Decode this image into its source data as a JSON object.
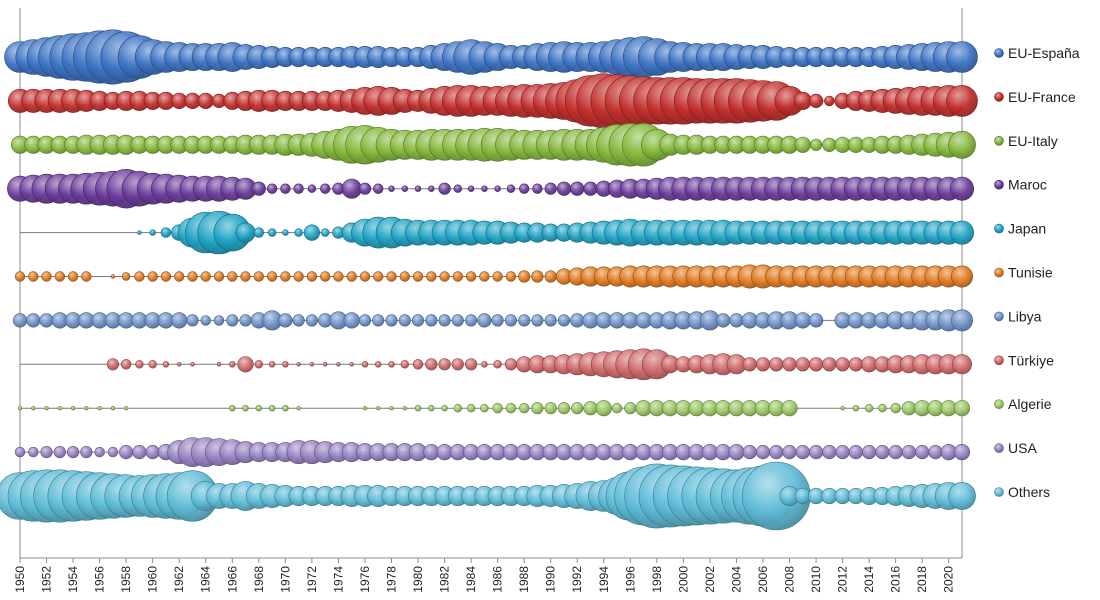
{
  "chart_data": {
    "type": "bubble",
    "title": "",
    "xlabel": "",
    "ylabel": "",
    "xlim": [
      1950,
      2021
    ],
    "x_ticks": [
      1950,
      1952,
      1954,
      1956,
      1958,
      1960,
      1962,
      1964,
      1966,
      1968,
      1970,
      1972,
      1974,
      1976,
      1978,
      1980,
      1982,
      1984,
      1986,
      1988,
      1990,
      1992,
      1994,
      1996,
      1998,
      2000,
      2002,
      2004,
      2006,
      2008,
      2010,
      2012,
      2014,
      2016,
      2018,
      2020
    ],
    "grid": false,
    "legend_position": "right",
    "value_note": "bubble size per country per year (relative, estimated from bubble diameters)",
    "years": [
      1950,
      1951,
      1952,
      1953,
      1954,
      1955,
      1956,
      1957,
      1958,
      1959,
      1960,
      1961,
      1962,
      1963,
      1964,
      1965,
      1966,
      1967,
      1968,
      1969,
      1970,
      1971,
      1972,
      1973,
      1974,
      1975,
      1976,
      1977,
      1978,
      1979,
      1980,
      1981,
      1982,
      1983,
      1984,
      1985,
      1986,
      1987,
      1988,
      1989,
      1990,
      1991,
      1992,
      1993,
      1994,
      1995,
      1996,
      1997,
      1998,
      1999,
      2000,
      2001,
      2002,
      2003,
      2004,
      2005,
      2006,
      2007,
      2008,
      2009,
      2010,
      2011,
      2012,
      2013,
      2014,
      2015,
      2016,
      2017,
      2018,
      2019,
      2020,
      2021
    ],
    "series": [
      {
        "name": "EU-España",
        "color": "#3e74c4",
        "values": [
          32,
          36,
          40,
          44,
          48,
          50,
          54,
          56,
          52,
          44,
          36,
          32,
          30,
          28,
          28,
          28,
          30,
          26,
          24,
          22,
          20,
          20,
          20,
          20,
          20,
          22,
          22,
          22,
          20,
          20,
          20,
          24,
          28,
          32,
          36,
          32,
          28,
          24,
          24,
          28,
          30,
          32,
          30,
          30,
          32,
          36,
          40,
          42,
          38,
          32,
          30,
          28,
          28,
          28,
          26,
          24,
          24,
          22,
          20,
          20,
          20,
          20,
          20,
          20,
          20,
          22,
          24,
          26,
          28,
          30,
          32,
          32
        ]
      },
      {
        "name": "EU-France",
        "color": "#c2302e",
        "values": [
          24,
          24,
          24,
          24,
          24,
          22,
          20,
          18,
          20,
          20,
          18,
          18,
          16,
          16,
          16,
          14,
          18,
          20,
          22,
          22,
          20,
          20,
          20,
          20,
          22,
          24,
          28,
          30,
          28,
          24,
          22,
          26,
          30,
          32,
          32,
          30,
          30,
          32,
          34,
          34,
          36,
          38,
          44,
          52,
          56,
          54,
          52,
          50,
          48,
          48,
          48,
          46,
          46,
          46,
          46,
          44,
          42,
          40,
          30,
          18,
          14,
          10,
          16,
          20,
          22,
          24,
          26,
          28,
          30,
          30,
          32,
          32
        ]
      },
      {
        "name": "EU-Italy",
        "color": "#85b83c",
        "values": [
          18,
          18,
          18,
          18,
          18,
          20,
          20,
          20,
          20,
          18,
          18,
          18,
          18,
          18,
          18,
          18,
          18,
          20,
          20,
          20,
          22,
          22,
          24,
          28,
          32,
          38,
          40,
          36,
          32,
          30,
          30,
          32,
          32,
          32,
          32,
          34,
          34,
          32,
          30,
          30,
          30,
          32,
          32,
          32,
          36,
          42,
          44,
          44,
          32,
          22,
          20,
          20,
          18,
          18,
          18,
          18,
          18,
          18,
          18,
          16,
          12,
          14,
          16,
          16,
          16,
          18,
          18,
          20,
          22,
          24,
          26,
          28
        ]
      },
      {
        "name": "Maroc",
        "color": "#6b3c9a",
        "values": [
          26,
          28,
          30,
          30,
          30,
          32,
          34,
          36,
          40,
          36,
          32,
          30,
          28,
          26,
          26,
          26,
          24,
          22,
          14,
          10,
          10,
          10,
          8,
          10,
          12,
          20,
          12,
          10,
          6,
          6,
          6,
          6,
          12,
          8,
          6,
          6,
          6,
          8,
          10,
          10,
          12,
          14,
          14,
          14,
          16,
          18,
          20,
          20,
          22,
          24,
          24,
          24,
          24,
          24,
          24,
          24,
          24,
          24,
          24,
          24,
          24,
          24,
          24,
          24,
          24,
          24,
          24,
          24,
          24,
          24,
          24,
          24
        ]
      },
      {
        "name": "Japan",
        "color": "#20a3c4",
        "values": [
          0,
          0,
          0,
          0,
          0,
          0,
          0,
          0,
          0,
          4,
          6,
          10,
          16,
          30,
          42,
          44,
          38,
          20,
          10,
          8,
          6,
          8,
          16,
          8,
          12,
          20,
          28,
          32,
          32,
          28,
          26,
          26,
          26,
          26,
          26,
          24,
          24,
          22,
          20,
          20,
          18,
          18,
          20,
          22,
          24,
          26,
          28,
          26,
          26,
          26,
          26,
          26,
          26,
          26,
          24,
          24,
          24,
          24,
          24,
          24,
          24,
          24,
          24,
          24,
          24,
          24,
          24,
          24,
          24,
          24,
          24,
          24
        ]
      },
      {
        "name": "Tunisie",
        "color": "#e07b20",
        "values": [
          10,
          10,
          10,
          10,
          10,
          10,
          0,
          4,
          8,
          10,
          10,
          10,
          10,
          10,
          10,
          10,
          10,
          10,
          10,
          10,
          10,
          10,
          10,
          10,
          10,
          10,
          10,
          10,
          10,
          10,
          10,
          10,
          10,
          10,
          10,
          10,
          10,
          10,
          12,
          12,
          12,
          16,
          18,
          20,
          20,
          20,
          22,
          22,
          22,
          22,
          22,
          22,
          22,
          22,
          22,
          24,
          24,
          22,
          22,
          22,
          22,
          22,
          22,
          22,
          22,
          22,
          22,
          22,
          22,
          22,
          22,
          22
        ]
      },
      {
        "name": "Libya",
        "color": "#6f92c8",
        "values": [
          14,
          14,
          14,
          16,
          16,
          16,
          16,
          16,
          16,
          16,
          16,
          16,
          16,
          12,
          10,
          10,
          12,
          12,
          16,
          20,
          14,
          12,
          12,
          14,
          18,
          16,
          12,
          12,
          12,
          12,
          12,
          12,
          12,
          12,
          12,
          14,
          12,
          12,
          12,
          12,
          12,
          12,
          14,
          16,
          16,
          16,
          16,
          16,
          16,
          18,
          18,
          18,
          20,
          14,
          14,
          16,
          16,
          18,
          18,
          16,
          14,
          0,
          16,
          16,
          16,
          16,
          18,
          18,
          20,
          20,
          22,
          22
        ]
      },
      {
        "name": "Türkiye",
        "color": "#d06a6a",
        "values": [
          0,
          0,
          0,
          0,
          0,
          0,
          0,
          12,
          10,
          8,
          8,
          6,
          4,
          4,
          0,
          4,
          6,
          16,
          8,
          6,
          6,
          4,
          4,
          4,
          4,
          4,
          6,
          6,
          6,
          8,
          10,
          12,
          12,
          12,
          12,
          6,
          8,
          12,
          16,
          18,
          18,
          20,
          22,
          24,
          26,
          28,
          30,
          32,
          30,
          18,
          16,
          18,
          20,
          22,
          20,
          14,
          14,
          14,
          14,
          14,
          14,
          14,
          14,
          14,
          16,
          16,
          18,
          18,
          20,
          20,
          20,
          20
        ]
      },
      {
        "name": "Algerie",
        "color": "#9cc664",
        "values": [
          4,
          4,
          4,
          4,
          4,
          4,
          4,
          4,
          4,
          0,
          0,
          0,
          0,
          0,
          0,
          0,
          6,
          6,
          6,
          6,
          6,
          4,
          0,
          0,
          0,
          0,
          4,
          4,
          4,
          4,
          6,
          6,
          6,
          8,
          8,
          8,
          10,
          10,
          10,
          12,
          12,
          12,
          12,
          14,
          16,
          10,
          12,
          16,
          16,
          16,
          16,
          16,
          16,
          16,
          16,
          16,
          16,
          16,
          16,
          0,
          0,
          0,
          4,
          6,
          8,
          8,
          10,
          14,
          16,
          16,
          16,
          16
        ]
      },
      {
        "name": "USA",
        "color": "#9682c2",
        "values": [
          10,
          10,
          12,
          12,
          12,
          12,
          10,
          10,
          14,
          14,
          14,
          16,
          24,
          30,
          30,
          28,
          26,
          22,
          20,
          20,
          20,
          24,
          24,
          22,
          20,
          20,
          18,
          18,
          18,
          18,
          18,
          16,
          16,
          16,
          16,
          16,
          16,
          16,
          16,
          16,
          16,
          16,
          16,
          16,
          16,
          16,
          16,
          16,
          16,
          16,
          16,
          16,
          16,
          16,
          16,
          14,
          14,
          14,
          14,
          14,
          14,
          14,
          14,
          14,
          14,
          14,
          14,
          14,
          14,
          14,
          16,
          16
        ]
      },
      {
        "name": "Others",
        "color": "#60bcd8",
        "values": [
          48,
          52,
          54,
          54,
          52,
          50,
          48,
          46,
          44,
          42,
          44,
          46,
          48,
          52,
          30,
          26,
          26,
          30,
          26,
          24,
          22,
          20,
          20,
          20,
          20,
          22,
          22,
          22,
          20,
          20,
          20,
          20,
          20,
          20,
          20,
          20,
          20,
          20,
          20,
          22,
          22,
          24,
          26,
          30,
          32,
          38,
          50,
          60,
          66,
          64,
          62,
          60,
          58,
          56,
          54,
          58,
          62,
          70,
          20,
          16,
          16,
          16,
          16,
          16,
          18,
          18,
          20,
          22,
          24,
          26,
          28,
          28
        ]
      }
    ]
  }
}
